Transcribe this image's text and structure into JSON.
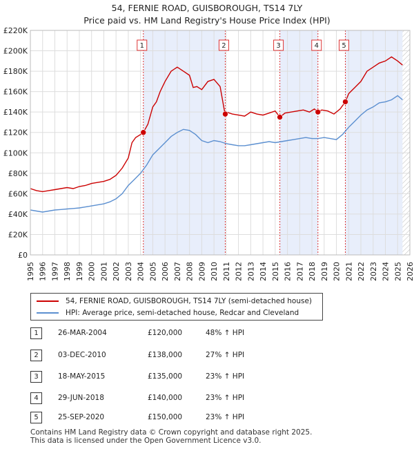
{
  "title_line1": "54, FERNIE ROAD, GUISBOROUGH, TS14 7LY",
  "title_line2": "Price paid vs. HM Land Registry's House Price Index (HPI)",
  "legend": {
    "property_label": "54, FERNIE ROAD, GUISBOROUGH, TS14 7LY (semi-detached house)",
    "hpi_label": "HPI: Average price, semi-detached house, Redcar and Cleveland"
  },
  "transactions": [
    {
      "num": "1",
      "date": "26-MAR-2004",
      "price": "£120,000",
      "delta": "48% ↑ HPI"
    },
    {
      "num": "2",
      "date": "03-DEC-2010",
      "price": "£138,000",
      "delta": "27% ↑ HPI"
    },
    {
      "num": "3",
      "date": "18-MAY-2015",
      "price": "£135,000",
      "delta": "23% ↑ HPI"
    },
    {
      "num": "4",
      "date": "29-JUN-2018",
      "price": "£140,000",
      "delta": "23% ↑ HPI"
    },
    {
      "num": "5",
      "date": "25-SEP-2020",
      "price": "£150,000",
      "delta": "23% ↑ HPI"
    }
  ],
  "footer_line1": "Contains HM Land Registry data © Crown copyright and database right 2025.",
  "footer_line2": "This data is licensed under the Open Government Licence v3.0.",
  "chart_data": {
    "type": "line",
    "title": "54, FERNIE ROAD, GUISBOROUGH, TS14 7LY",
    "subtitle": "Price paid vs. HM Land Registry's House Price Index (HPI)",
    "xlabel": "",
    "ylabel": "",
    "xlim": [
      1995,
      2026
    ],
    "ylim": [
      0,
      220000
    ],
    "y_ticks": [
      0,
      20000,
      40000,
      60000,
      80000,
      100000,
      120000,
      140000,
      160000,
      180000,
      200000,
      220000
    ],
    "y_tick_labels": [
      "£0",
      "£20K",
      "£40K",
      "£60K",
      "£80K",
      "£100K",
      "£120K",
      "£140K",
      "£160K",
      "£180K",
      "£200K",
      "£220K"
    ],
    "x_ticks": [
      1995,
      1996,
      1997,
      1998,
      1999,
      2000,
      2001,
      2002,
      2003,
      2004,
      2005,
      2006,
      2007,
      2008,
      2009,
      2010,
      2011,
      2012,
      2013,
      2014,
      2015,
      2016,
      2017,
      2018,
      2019,
      2020,
      2021,
      2022,
      2023,
      2024,
      2025,
      2026
    ],
    "x_tick_labels": [
      "1995",
      "1996",
      "1997",
      "1998",
      "1999",
      "2000",
      "2001",
      "2002",
      "2003",
      "2004",
      "2005",
      "2006",
      "2007",
      "2008",
      "2009",
      "2010",
      "2011",
      "2012",
      "2013",
      "2014",
      "2015",
      "2016",
      "2017",
      "2018",
      "2019",
      "2020",
      "2021",
      "2022",
      "2023",
      "2024",
      "2025",
      "2026"
    ],
    "grid": true,
    "shaded_ranges": [
      [
        2004.23,
        2010.92
      ],
      [
        2015.38,
        2018.49
      ],
      [
        2020.73,
        2025.4
      ]
    ],
    "future_hatch_from": 2025.4,
    "colors": {
      "property": "#cc0000",
      "hpi": "#5b8fd0",
      "shade": "#e8eefb",
      "vline": "#dd3333"
    },
    "series": [
      {
        "name": "54, FERNIE ROAD, GUISBOROUGH, TS14 7LY (semi-detached house)",
        "x": [
          1995.0,
          1995.5,
          1996.0,
          1996.5,
          1997.0,
          1997.5,
          1998.0,
          1998.5,
          1999.0,
          1999.5,
          2000.0,
          2000.5,
          2001.0,
          2001.5,
          2002.0,
          2002.5,
          2003.0,
          2003.3,
          2003.6,
          2004.0,
          2004.23,
          2004.6,
          2005.0,
          2005.3,
          2005.6,
          2006.0,
          2006.5,
          2007.0,
          2007.5,
          2008.0,
          2008.3,
          2008.6,
          2009.0,
          2009.5,
          2010.0,
          2010.5,
          2010.9,
          2011.0,
          2011.5,
          2012.0,
          2012.5,
          2013.0,
          2013.5,
          2014.0,
          2014.5,
          2015.0,
          2015.38,
          2015.8,
          2016.3,
          2016.8,
          2017.3,
          2017.8,
          2018.2,
          2018.49,
          2018.8,
          2019.3,
          2019.8,
          2020.3,
          2020.73,
          2021.0,
          2021.5,
          2022.0,
          2022.5,
          2023.0,
          2023.5,
          2024.0,
          2024.5,
          2025.0,
          2025.4
        ],
        "values": [
          65000,
          63000,
          62000,
          63000,
          64000,
          65000,
          66000,
          65000,
          67000,
          68000,
          70000,
          71000,
          72000,
          74000,
          78000,
          85000,
          95000,
          110000,
          115000,
          118000,
          120000,
          128000,
          145000,
          150000,
          160000,
          170000,
          180000,
          184000,
          180000,
          176000,
          164000,
          165000,
          162000,
          170000,
          172000,
          165000,
          138000,
          140000,
          138000,
          137000,
          136000,
          140000,
          138000,
          137000,
          139000,
          141000,
          135000,
          139000,
          140000,
          141000,
          142000,
          140000,
          143000,
          140000,
          142000,
          141000,
          138000,
          143000,
          150000,
          158000,
          164000,
          170000,
          180000,
          184000,
          188000,
          190000,
          194000,
          190000,
          186000
        ]
      },
      {
        "name": "HPI: Average price, semi-detached house, Redcar and Cleveland",
        "x": [
          1995.0,
          1995.5,
          1996.0,
          1996.5,
          1997.0,
          1997.5,
          1998.0,
          1998.5,
          1999.0,
          1999.5,
          2000.0,
          2000.5,
          2001.0,
          2001.5,
          2002.0,
          2002.5,
          2003.0,
          2003.5,
          2004.0,
          2004.5,
          2005.0,
          2005.5,
          2006.0,
          2006.5,
          2007.0,
          2007.5,
          2008.0,
          2008.5,
          2009.0,
          2009.5,
          2010.0,
          2010.5,
          2011.0,
          2011.5,
          2012.0,
          2012.5,
          2013.0,
          2013.5,
          2014.0,
          2014.5,
          2015.0,
          2015.5,
          2016.0,
          2016.5,
          2017.0,
          2017.5,
          2018.0,
          2018.5,
          2019.0,
          2019.5,
          2020.0,
          2020.5,
          2021.0,
          2021.5,
          2022.0,
          2022.5,
          2023.0,
          2023.5,
          2024.0,
          2024.5,
          2025.0,
          2025.4
        ],
        "values": [
          44000,
          43000,
          42000,
          43000,
          44000,
          44500,
          45000,
          45500,
          46000,
          47000,
          48000,
          49000,
          50000,
          52000,
          55000,
          60000,
          68000,
          74000,
          80000,
          88000,
          98000,
          104000,
          110000,
          116000,
          120000,
          123000,
          122000,
          118000,
          112000,
          110000,
          112000,
          111000,
          109000,
          108000,
          107000,
          107000,
          108000,
          109000,
          110000,
          111000,
          110000,
          111000,
          112000,
          113000,
          114000,
          115000,
          114000,
          114000,
          115000,
          114000,
          113000,
          118000,
          125000,
          131000,
          137000,
          142000,
          145000,
          149000,
          150000,
          152000,
          156000,
          152000
        ]
      }
    ],
    "markers": [
      {
        "label": "1",
        "x": 2004.23,
        "y": 120000
      },
      {
        "label": "2",
        "x": 2010.92,
        "y": 138000
      },
      {
        "label": "3",
        "x": 2015.38,
        "y": 135000
      },
      {
        "label": "4",
        "x": 2018.49,
        "y": 140000
      },
      {
        "label": "5",
        "x": 2020.73,
        "y": 150000
      }
    ]
  }
}
